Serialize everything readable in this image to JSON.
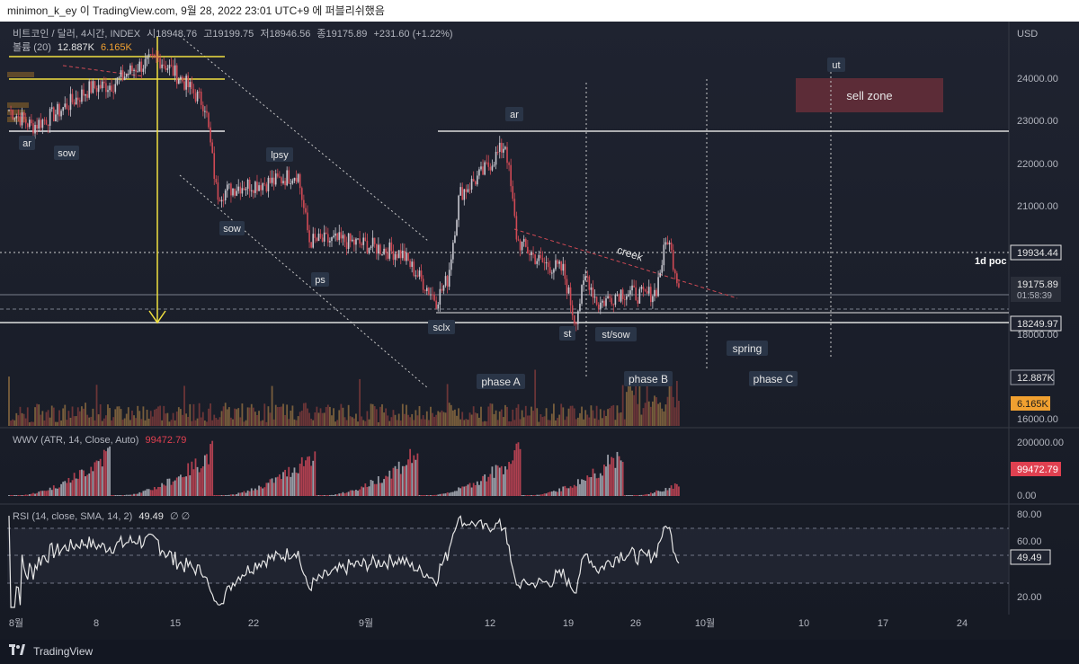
{
  "header": {
    "publish_line": "minimon_k_ey 이 TradingView.com, 9월 28, 2022 23:01 UTC+9 에 퍼블리쉬했음"
  },
  "chart_header": {
    "symbol_line": "비트코인 / 달러, 4시간, INDEX",
    "open_label": "시",
    "open_value": "18948.76",
    "high_label": "고",
    "high_value": "19199.75",
    "low_label": "저",
    "low_value": "18946.56",
    "close_label": "종",
    "close_value": "19175.89",
    "change": "+231.60 (+1.22%)",
    "volume_prefix": "볼륨 (20)",
    "volume_value": "12.887K",
    "volume_ma": "6.165K"
  },
  "price_axis": {
    "currency": "USD",
    "ticks": [
      "24000.00",
      "23000.00",
      "22000.00",
      "21000.00",
      "18000.00",
      "16000.00"
    ],
    "level_1d_poc": "19934.44",
    "last_price": "19175.89",
    "countdown": "01:58:39",
    "support_level": "18249.97",
    "volume_tag": "12.887K",
    "volume_ma_tag": "6.165K"
  },
  "time_axis": {
    "ticks": [
      "8월",
      "8",
      "15",
      "22",
      "9월",
      "12",
      "19",
      "26",
      "10월",
      "10",
      "17",
      "24"
    ]
  },
  "annotations": {
    "ar_left": "ar",
    "sow_left": "sow",
    "lpsy": "lpsy",
    "sow_mid": "sow",
    "ps": "ps",
    "sclx": "sclx",
    "ar_top": "ar",
    "st": "st",
    "st_sow": "st/sow",
    "creek": "creek",
    "one_d_poc": "1d poc",
    "phase_a": "phase A",
    "phase_b": "phase B",
    "spring": "spring",
    "phase_c": "phase C",
    "ut": "ut",
    "sell_zone": "sell zone"
  },
  "wwv_panel": {
    "legend_name": "WWV (ATR, 14, Close, Auto)",
    "legend_value": "99472.79",
    "axis_ticks": [
      "200000.00",
      "0.00"
    ],
    "value_tag": "99472.79"
  },
  "rsi_panel": {
    "legend_name": "RSI (14, close, SMA, 14, 2)",
    "legend_value": "49.49",
    "legend_extra": "∅ ∅",
    "axis_ticks": [
      "80.00",
      "60.00",
      "40.00",
      "20.00"
    ],
    "value_tag": "49.49"
  },
  "footer": {
    "brand": "TradingView"
  },
  "colors": {
    "background": "#1a1e29",
    "candle_up": "#c8c8d0",
    "candle_down": "#d04a55",
    "fib_yellow": "#f0e040",
    "volume_orange": "#8a5a2a",
    "sell_zone": "#6b2f3a",
    "rsi_line": "#e0e0e0"
  },
  "chart_data": {
    "type": "candlestick",
    "symbol": "비트코인 / 달러",
    "interval": "4시간",
    "y_range": [
      16000,
      25000
    ],
    "series": [
      {
        "x": "2022-08-01",
        "price": 23300
      },
      {
        "x": "2022-08-03",
        "price": 22900
      },
      {
        "x": "2022-08-05",
        "price": 23200
      },
      {
        "x": "2022-08-08",
        "price": 23800
      },
      {
        "x": "2022-08-10",
        "price": 23900
      },
      {
        "x": "2022-08-12",
        "price": 24300
      },
      {
        "x": "2022-08-14",
        "price": 24500
      },
      {
        "x": "2022-08-16",
        "price": 24000
      },
      {
        "x": "2022-08-18",
        "price": 23400
      },
      {
        "x": "2022-08-19",
        "price": 21300
      },
      {
        "x": "2022-08-21",
        "price": 21500
      },
      {
        "x": "2022-08-24",
        "price": 21600
      },
      {
        "x": "2022-08-26",
        "price": 21800
      },
      {
        "x": "2022-08-27",
        "price": 20200
      },
      {
        "x": "2022-08-30",
        "price": 20200
      },
      {
        "x": "2022-09-01",
        "price": 20100
      },
      {
        "x": "2022-09-04",
        "price": 19900
      },
      {
        "x": "2022-09-07",
        "price": 18800
      },
      {
        "x": "2022-09-08",
        "price": 19300
      },
      {
        "x": "2022-09-09",
        "price": 21300
      },
      {
        "x": "2022-09-11",
        "price": 21800
      },
      {
        "x": "2022-09-13",
        "price": 22500
      },
      {
        "x": "2022-09-14",
        "price": 20200
      },
      {
        "x": "2022-09-16",
        "price": 19700
      },
      {
        "x": "2022-09-18",
        "price": 19500
      },
      {
        "x": "2022-09-19",
        "price": 18300
      },
      {
        "x": "2022-09-20",
        "price": 19400
      },
      {
        "x": "2022-09-21",
        "price": 18700
      },
      {
        "x": "2022-09-23",
        "price": 19000
      },
      {
        "x": "2022-09-25",
        "price": 18900
      },
      {
        "x": "2022-09-26",
        "price": 19000
      },
      {
        "x": "2022-09-27",
        "price": 20300
      },
      {
        "x": "2022-09-28",
        "price": 19176
      }
    ],
    "levels": {
      "last": 19175.89,
      "poc_1d": 19934.44,
      "support": 18249.97
    }
  }
}
